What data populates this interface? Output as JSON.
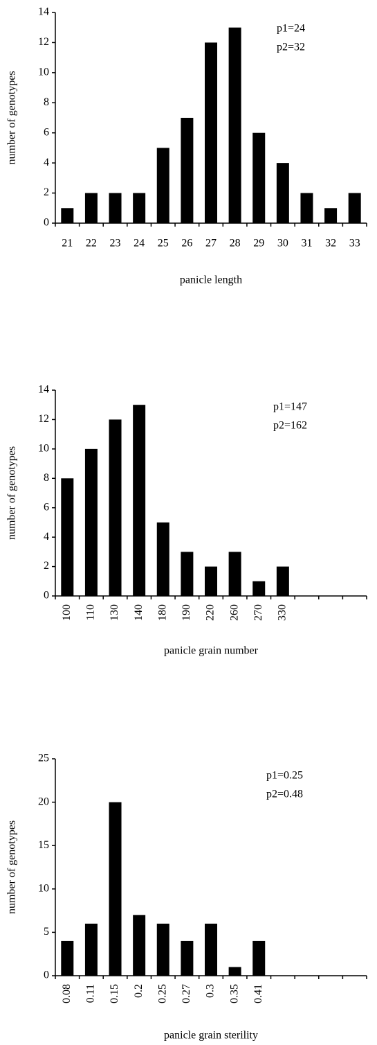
{
  "chart_data": [
    {
      "type": "bar",
      "categories": [
        "21",
        "22",
        "23",
        "24",
        "25",
        "26",
        "27",
        "28",
        "29",
        "30",
        "31",
        "32",
        "33"
      ],
      "values": [
        1,
        2,
        2,
        2,
        5,
        7,
        12,
        13,
        6,
        4,
        2,
        1,
        2
      ],
      "color": "#000000",
      "ylim": [
        0,
        14
      ],
      "yticks": [
        0,
        2,
        4,
        6,
        8,
        10,
        12,
        14
      ],
      "x_label": "panicle length",
      "y_label": "number of genotypes",
      "annotations": [
        "p1=24",
        "p2=32"
      ],
      "rotate_labels": false
    },
    {
      "type": "bar",
      "categories": [
        "100",
        "110",
        "130",
        "140",
        "180",
        "190",
        "220",
        "260",
        "270",
        "330"
      ],
      "values": [
        8,
        10,
        12,
        13,
        5,
        3,
        2,
        3,
        1,
        2
      ],
      "color": "#000000",
      "ylim": [
        0,
        14
      ],
      "yticks": [
        0,
        2,
        4,
        6,
        8,
        10,
        12,
        14
      ],
      "x_label": "panicle grain number",
      "y_label": "number of genotypes",
      "annotations": [
        "p1=147",
        "p2=162"
      ],
      "rotate_labels": true
    },
    {
      "type": "bar",
      "categories": [
        "0.08",
        "0.11",
        "0.15",
        "0.2",
        "0.25",
        "0.27",
        "0.3",
        "0.35",
        "0.41"
      ],
      "values": [
        4,
        6,
        20,
        7,
        6,
        4,
        6,
        1,
        4
      ],
      "color": "#000000",
      "ylim": [
        0,
        25
      ],
      "yticks": [
        0,
        5,
        10,
        15,
        20,
        25
      ],
      "x_label": "panicle grain sterility",
      "y_label": "number of genotypes",
      "annotations": [
        "p1=0.25",
        "p2=0.48"
      ],
      "rotate_labels": true
    }
  ]
}
